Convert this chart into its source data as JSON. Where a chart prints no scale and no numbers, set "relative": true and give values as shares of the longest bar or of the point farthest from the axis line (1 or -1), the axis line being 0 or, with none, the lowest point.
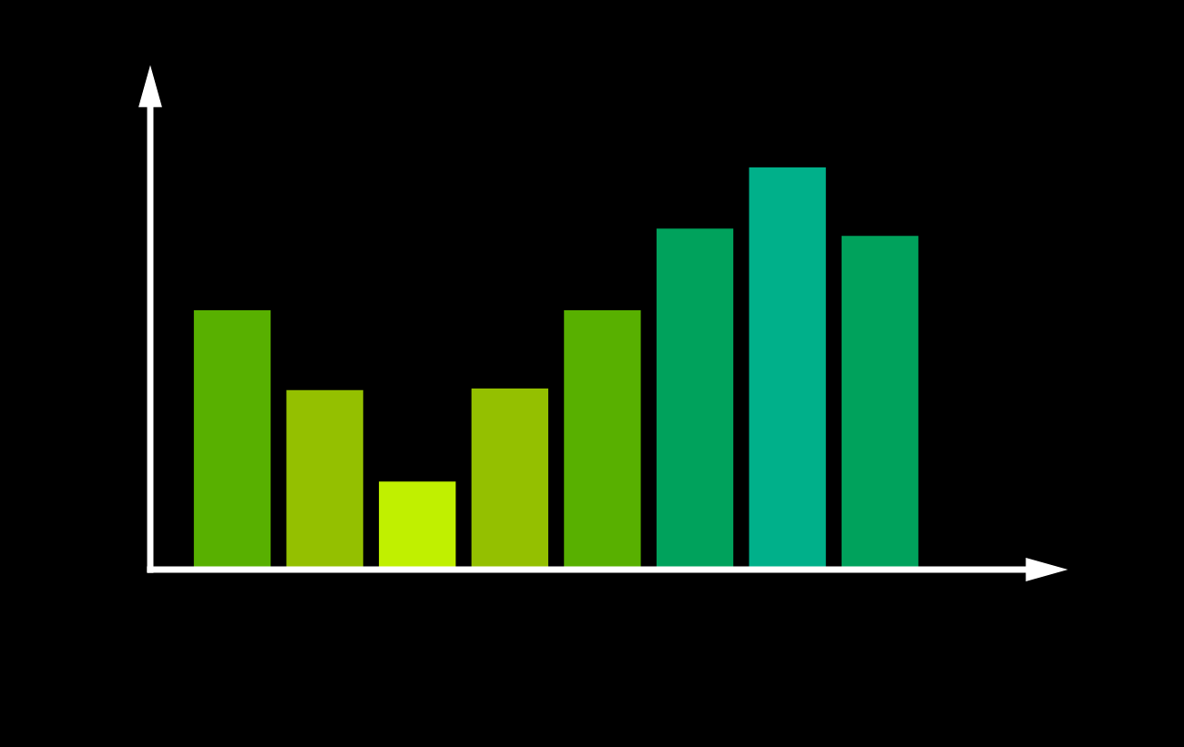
{
  "chart_data": {
    "type": "bar",
    "relative": true,
    "categories": [
      null,
      null,
      null,
      null,
      null,
      null,
      null,
      null
    ],
    "values": [
      0.645,
      0.446,
      0.219,
      0.45,
      0.645,
      0.848,
      1.0,
      0.83
    ],
    "colors": [
      "#58b000",
      "#94c000",
      "#c0f000",
      "#94c000",
      "#58b000",
      "#00a25c",
      "#00b08a",
      "#00a25c"
    ],
    "grid": false,
    "legend": false
  }
}
